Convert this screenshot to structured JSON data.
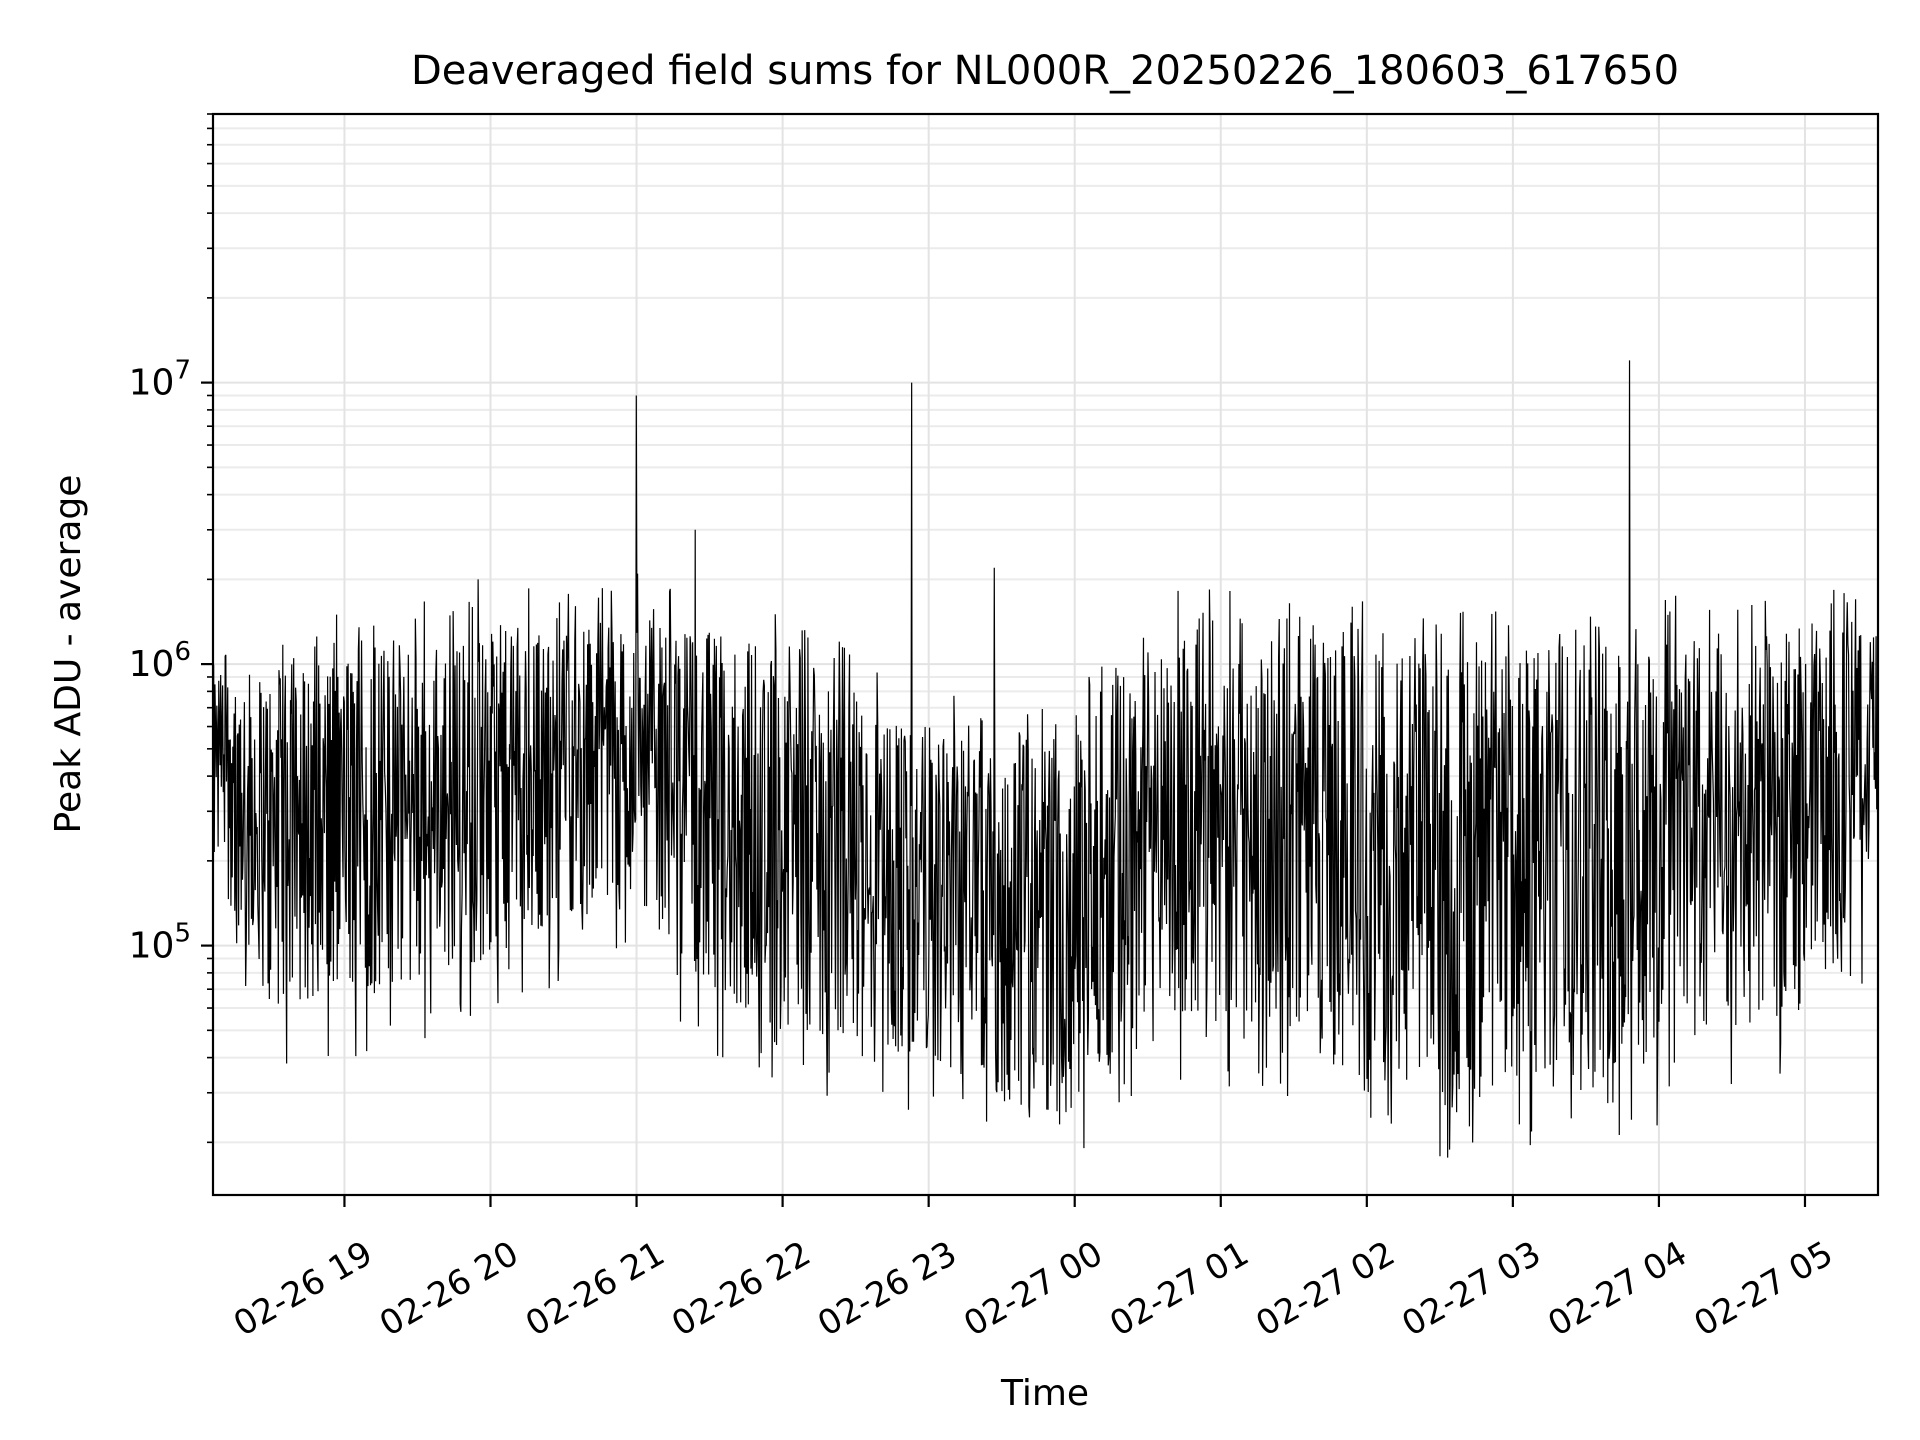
{
  "chart_data": {
    "type": "line",
    "title": "Deaveraged field sums for NL000R_20250226_180603_617650",
    "xlabel": "Time",
    "ylabel": "Peak ADU - average",
    "yscale": "log",
    "grid": true,
    "legend": "none",
    "xlim": [
      "2025-02-26 18:06",
      "2025-02-27 05:30"
    ],
    "ylim": [
      13000,
      90000000
    ],
    "x_ticks": [
      "02-26 19",
      "02-26 20",
      "02-26 21",
      "02-26 22",
      "02-26 23",
      "02-27 00",
      "02-27 01",
      "02-27 02",
      "02-27 03",
      "02-27 04",
      "02-27 05"
    ],
    "y_ticks": [
      {
        "mantissa": "10",
        "exp": "5",
        "value": 100000
      },
      {
        "mantissa": "10",
        "exp": "6",
        "value": 1000000
      },
      {
        "mantissa": "10",
        "exp": "7",
        "value": 10000000
      }
    ],
    "series": [
      {
        "color": "#000000",
        "envelope": {
          "x": [
            "2025-02-26 18:06",
            "2025-02-26 18:30",
            "2025-02-26 19:00",
            "2025-02-26 19:30",
            "2025-02-26 20:00",
            "2025-02-26 20:30",
            "2025-02-26 21:00",
            "2025-02-26 21:30",
            "2025-02-26 22:00",
            "2025-02-26 22:30",
            "2025-02-26 23:00",
            "2025-02-26 23:30",
            "2025-02-27 00:00",
            "2025-02-27 00:30",
            "2025-02-27 01:00",
            "2025-02-27 01:30",
            "2025-02-27 02:00",
            "2025-02-27 02:30",
            "2025-02-27 03:00",
            "2025-02-27 03:30",
            "2025-02-27 04:00",
            "2025-02-27 04:30",
            "2025-02-27 05:00",
            "2025-02-27 05:30"
          ],
          "low": [
            200000,
            60000,
            70000,
            75000,
            90000,
            130000,
            150000,
            70000,
            50000,
            45000,
            40000,
            28000,
            25000,
            60000,
            55000,
            50000,
            30000,
            30000,
            32000,
            35000,
            40000,
            50000,
            60000,
            150000
          ],
          "high": [
            1000000,
            900000,
            1100000,
            1200000,
            1300000,
            1400000,
            1500000,
            1300000,
            1200000,
            800000,
            600000,
            500000,
            600000,
            1400000,
            1300000,
            1200000,
            1200000,
            1100000,
            1100000,
            1300000,
            1300000,
            1100000,
            1400000,
            1500000
          ]
        },
        "spikes": [
          {
            "x": "2025-02-26 21:00",
            "y": 9000000
          },
          {
            "x": "2025-02-26 21:24",
            "y": 3000000
          },
          {
            "x": "2025-02-26 22:53",
            "y": 10000000
          },
          {
            "x": "2025-02-26 23:27",
            "y": 2200000
          },
          {
            "x": "2025-02-26 19:55",
            "y": 2000000
          },
          {
            "x": "2025-02-27 03:48",
            "y": 12000000
          }
        ]
      }
    ]
  }
}
